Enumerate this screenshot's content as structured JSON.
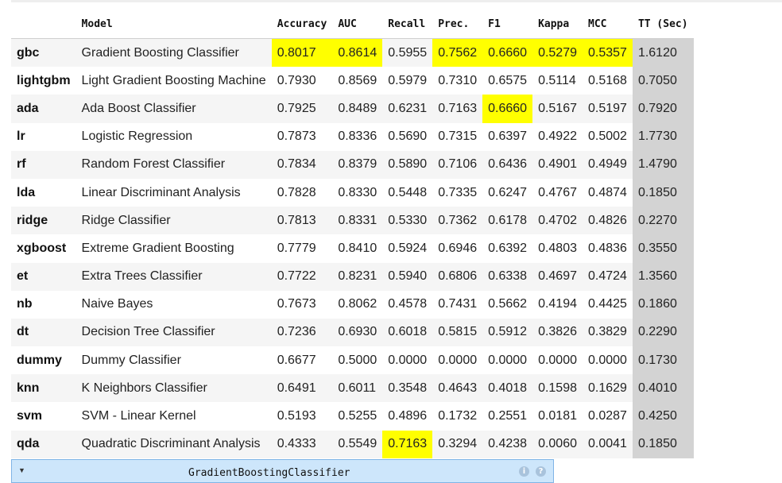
{
  "columns": [
    "",
    "Model",
    "Accuracy",
    "AUC",
    "Recall",
    "Prec.",
    "F1",
    "Kappa",
    "MCC",
    "TT (Sec)"
  ],
  "rows": [
    {
      "id": "gbc",
      "model": "Gradient Boosting Classifier",
      "values": [
        "0.8017",
        "0.8614",
        "0.5955",
        "0.7562",
        "0.6660",
        "0.5279",
        "0.5357",
        "1.6120"
      ]
    },
    {
      "id": "lightgbm",
      "model": "Light Gradient Boosting Machine",
      "values": [
        "0.7930",
        "0.8569",
        "0.5979",
        "0.7310",
        "0.6575",
        "0.5114",
        "0.5168",
        "0.7050"
      ]
    },
    {
      "id": "ada",
      "model": "Ada Boost Classifier",
      "values": [
        "0.7925",
        "0.8489",
        "0.6231",
        "0.7163",
        "0.6660",
        "0.5167",
        "0.5197",
        "0.7920"
      ]
    },
    {
      "id": "lr",
      "model": "Logistic Regression",
      "values": [
        "0.7873",
        "0.8336",
        "0.5690",
        "0.7315",
        "0.6397",
        "0.4922",
        "0.5002",
        "1.7730"
      ]
    },
    {
      "id": "rf",
      "model": "Random Forest Classifier",
      "values": [
        "0.7834",
        "0.8379",
        "0.5890",
        "0.7106",
        "0.6436",
        "0.4901",
        "0.4949",
        "1.4790"
      ]
    },
    {
      "id": "lda",
      "model": "Linear Discriminant Analysis",
      "values": [
        "0.7828",
        "0.8330",
        "0.5448",
        "0.7335",
        "0.6247",
        "0.4767",
        "0.4874",
        "0.1850"
      ]
    },
    {
      "id": "ridge",
      "model": "Ridge Classifier",
      "values": [
        "0.7813",
        "0.8331",
        "0.5330",
        "0.7362",
        "0.6178",
        "0.4702",
        "0.4826",
        "0.2270"
      ]
    },
    {
      "id": "xgboost",
      "model": "Extreme Gradient Boosting",
      "values": [
        "0.7779",
        "0.8410",
        "0.5924",
        "0.6946",
        "0.6392",
        "0.4803",
        "0.4836",
        "0.3550"
      ]
    },
    {
      "id": "et",
      "model": "Extra Trees Classifier",
      "values": [
        "0.7722",
        "0.8231",
        "0.5940",
        "0.6806",
        "0.6338",
        "0.4697",
        "0.4724",
        "1.3560"
      ]
    },
    {
      "id": "nb",
      "model": "Naive Bayes",
      "values": [
        "0.7673",
        "0.8062",
        "0.4578",
        "0.7431",
        "0.5662",
        "0.4194",
        "0.4425",
        "0.1860"
      ]
    },
    {
      "id": "dt",
      "model": "Decision Tree Classifier",
      "values": [
        "0.7236",
        "0.6930",
        "0.6018",
        "0.5815",
        "0.5912",
        "0.3826",
        "0.3829",
        "0.2290"
      ]
    },
    {
      "id": "dummy",
      "model": "Dummy Classifier",
      "values": [
        "0.6677",
        "0.5000",
        "0.0000",
        "0.0000",
        "0.0000",
        "0.0000",
        "0.0000",
        "0.1730"
      ]
    },
    {
      "id": "knn",
      "model": "K Neighbors Classifier",
      "values": [
        "0.6491",
        "0.6011",
        "0.3548",
        "0.4643",
        "0.4018",
        "0.1598",
        "0.1629",
        "0.4010"
      ]
    },
    {
      "id": "svm",
      "model": "SVM - Linear Kernel",
      "values": [
        "0.5193",
        "0.5255",
        "0.4896",
        "0.1732",
        "0.2551",
        "0.0181",
        "0.0287",
        "0.4250"
      ]
    },
    {
      "id": "qda",
      "model": "Quadratic Discriminant Analysis",
      "values": [
        "0.4333",
        "0.5549",
        "0.7163",
        "0.3294",
        "0.4238",
        "0.0060",
        "0.0041",
        "0.1850"
      ]
    }
  ],
  "highlights": [
    {
      "row": 0,
      "col": 0
    },
    {
      "row": 0,
      "col": 1
    },
    {
      "row": 0,
      "col": 3
    },
    {
      "row": 0,
      "col": 4
    },
    {
      "row": 0,
      "col": 5
    },
    {
      "row": 0,
      "col": 6
    },
    {
      "row": 2,
      "col": 4
    },
    {
      "row": 14,
      "col": 2
    }
  ],
  "colors": {
    "highlight": "#ffff00",
    "time_column": "#d3d3d3",
    "widget_bg": "#cde6fb"
  },
  "widget": {
    "label": "GradientBoostingClassifier",
    "toggle_icon": "triangle-down-icon",
    "icons": [
      "info-icon",
      "help-icon"
    ],
    "icon_glyphs": [
      "i",
      "?"
    ]
  }
}
